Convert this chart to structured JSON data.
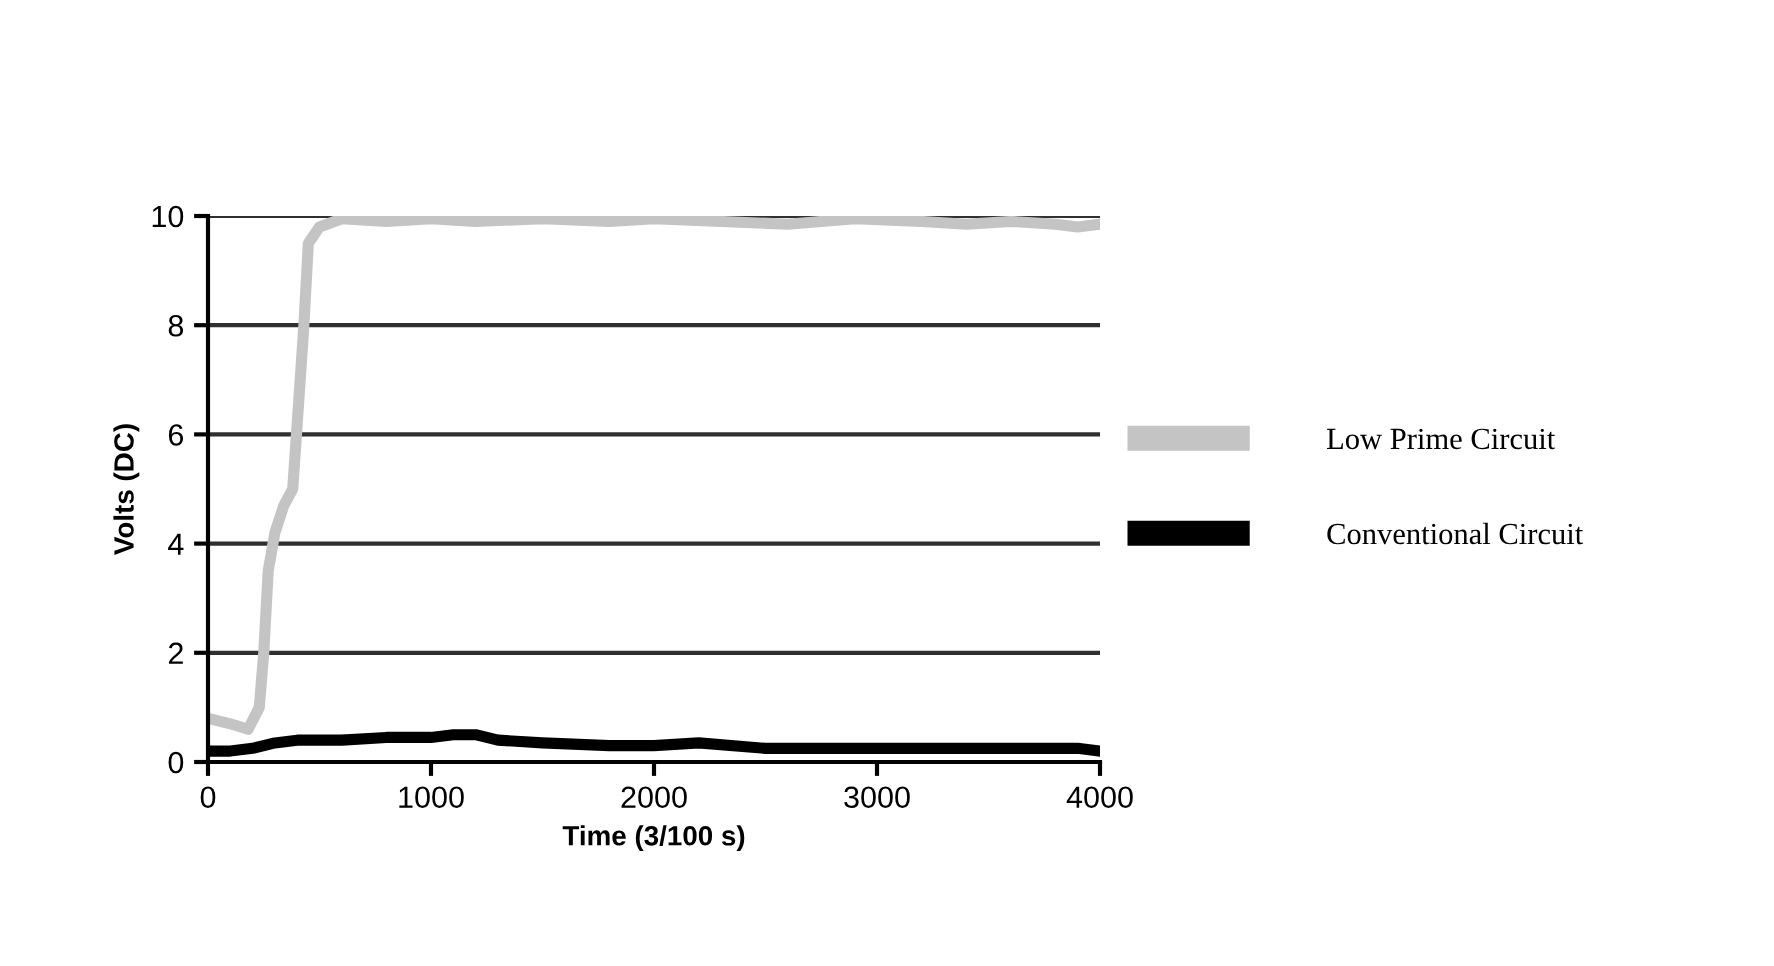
{
  "chart_data": {
    "type": "line",
    "xlabel": "Time (3/100 s)",
    "ylabel": "Volts (DC)",
    "xlim": [
      0,
      4000
    ],
    "ylim": [
      0,
      10
    ],
    "xticks": [
      0,
      1000,
      2000,
      3000,
      4000
    ],
    "yticks": [
      0,
      2,
      4,
      6,
      8,
      10
    ],
    "grid": "y",
    "legend": "right",
    "line_style": "solid",
    "marker": "none",
    "series": [
      {
        "name": "Low Prime Circuit",
        "color": "#c4c4c4",
        "x": [
          0,
          100,
          180,
          230,
          250,
          270,
          300,
          340,
          380,
          400,
          430,
          450,
          500,
          600,
          800,
          1000,
          1200,
          1500,
          1800,
          2000,
          2300,
          2600,
          2900,
          3200,
          3400,
          3600,
          3800,
          3900,
          4000
        ],
        "values": [
          0.8,
          0.7,
          0.6,
          1.0,
          2.0,
          3.5,
          4.2,
          4.7,
          5.0,
          6.2,
          8.0,
          9.5,
          9.8,
          9.95,
          9.9,
          9.95,
          9.9,
          9.95,
          9.9,
          9.95,
          9.9,
          9.85,
          9.95,
          9.9,
          9.85,
          9.9,
          9.85,
          9.8,
          9.85
        ]
      },
      {
        "name": "Conventional Circuit",
        "color": "#000000",
        "x": [
          0,
          100,
          200,
          300,
          400,
          600,
          800,
          1000,
          1100,
          1200,
          1300,
          1500,
          1800,
          2000,
          2200,
          2500,
          2800,
          3000,
          3300,
          3600,
          3900,
          4000
        ],
        "values": [
          0.2,
          0.2,
          0.25,
          0.35,
          0.4,
          0.4,
          0.45,
          0.45,
          0.5,
          0.5,
          0.4,
          0.35,
          0.3,
          0.3,
          0.35,
          0.25,
          0.25,
          0.25,
          0.25,
          0.25,
          0.25,
          0.2
        ]
      }
    ]
  }
}
